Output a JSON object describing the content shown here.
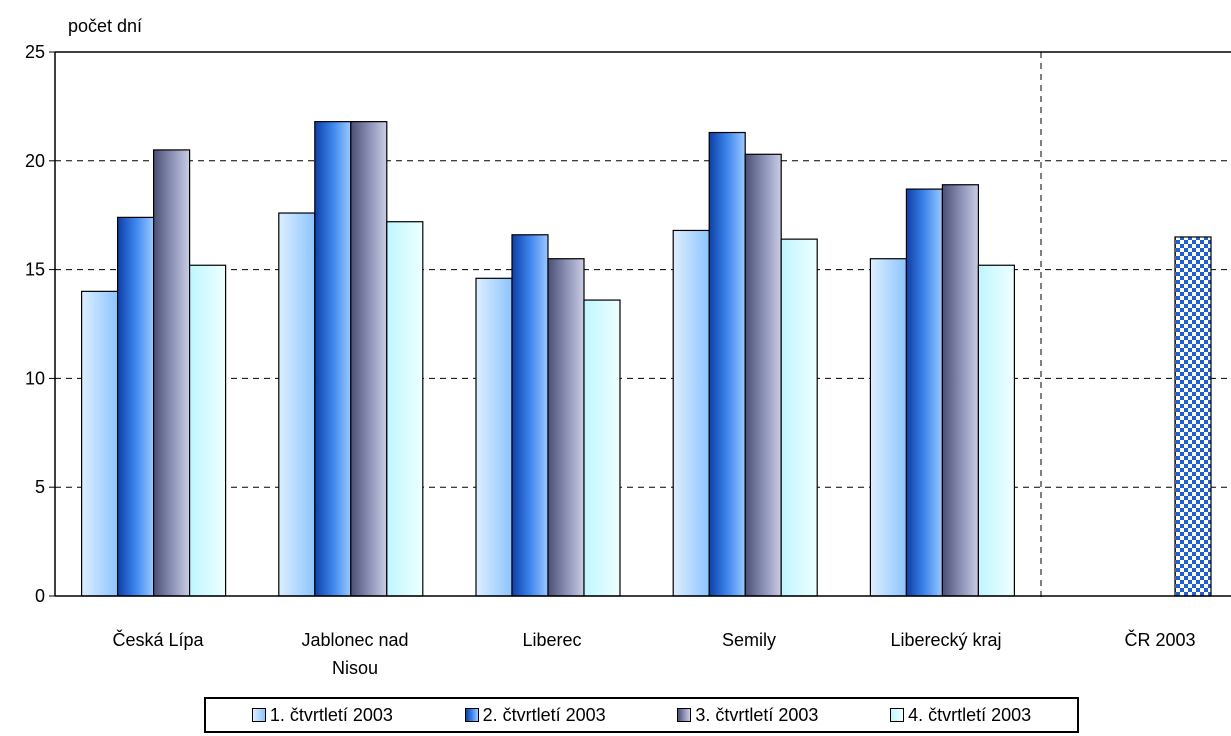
{
  "chart_data": {
    "type": "bar",
    "ylabel": "počet dní",
    "ylim": [
      0,
      25
    ],
    "yticks": [
      "0",
      "5",
      "10",
      "15",
      "20",
      "25"
    ],
    "grid": true,
    "legend_position": "bottom",
    "categories": [
      "Česká Lípa",
      "Jablonec nad Nisou",
      "Liberec",
      "Semily",
      "Liberecký kraj",
      "ČR 2003"
    ],
    "series": [
      {
        "name": "1. čtvrtletí 2003",
        "color": "#9fcfff",
        "values": [
          14.0,
          17.6,
          14.6,
          16.8,
          15.5,
          null
        ]
      },
      {
        "name": "2. čtvrtletí 2003",
        "color": "#2f6fd6",
        "values": [
          17.4,
          21.8,
          16.6,
          21.3,
          18.7,
          null
        ]
      },
      {
        "name": "3. čtvrtletí 2003",
        "color": "#7a7fa6",
        "values": [
          20.5,
          21.8,
          15.5,
          20.3,
          18.9,
          null
        ]
      },
      {
        "name": "4. čtvrtletí 2003",
        "color": "#ccffff",
        "values": [
          15.2,
          17.2,
          13.6,
          16.4,
          15.2,
          null
        ]
      }
    ],
    "reference": {
      "category": "ČR 2003",
      "value": 16.5,
      "pattern": "checkerboard-blue"
    }
  }
}
